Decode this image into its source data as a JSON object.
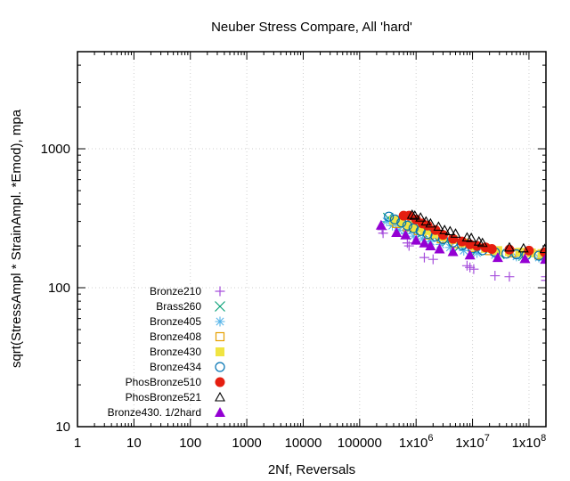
{
  "chart_data": {
    "type": "scatter",
    "title": "Neuber Stress Compare, All 'hard'",
    "xlabel": "2Nf, Reversals",
    "ylabel": "sqrt(StressAmpl * StrainAmpl. *Emod), mpa",
    "xscale": "log",
    "yscale": "log",
    "xlim": [
      1,
      200000000
    ],
    "ylim": [
      10,
      5000
    ],
    "grid": true,
    "legend_position": "bottom-left",
    "x_ticks": [
      {
        "value": 1,
        "label": "1"
      },
      {
        "value": 10,
        "label": "10"
      },
      {
        "value": 100,
        "label": "100"
      },
      {
        "value": 1000,
        "label": "1000"
      },
      {
        "value": 10000,
        "label": "10000"
      },
      {
        "value": 100000,
        "label": "100000"
      },
      {
        "value": 1000000,
        "label": "1x10",
        "sup": "6"
      },
      {
        "value": 10000000,
        "label": "1x10",
        "sup": "7"
      },
      {
        "value": 100000000,
        "label": "1x10",
        "sup": "8"
      }
    ],
    "y_ticks": [
      {
        "value": 10,
        "label": "10"
      },
      {
        "value": 100,
        "label": "100"
      },
      {
        "value": 1000,
        "label": "1000"
      }
    ],
    "series": [
      {
        "name": "Bronze210",
        "marker": "plus",
        "color": "#a64fdc",
        "x": [
          250000,
          260000,
          700000,
          750000,
          1400000,
          2000000,
          8000000,
          9000000,
          10500000,
          25000000,
          45000000,
          200000000,
          200000000
        ],
        "y": [
          262,
          247,
          210,
          200,
          165,
          160,
          144,
          140,
          136,
          122,
          120,
          120,
          113
        ]
      },
      {
        "name": "Brass260",
        "marker": "cross",
        "color": "#009e73",
        "x": [
          320000,
          420000,
          600000,
          900000,
          1300000,
          2000000,
          3500000,
          6000000,
          12000000,
          30000000,
          80000000,
          180000000
        ],
        "y": [
          318,
          300,
          280,
          265,
          250,
          235,
          215,
          200,
          185,
          175,
          170,
          168
        ]
      },
      {
        "name": "Bronze405",
        "marker": "star",
        "color": "#56b4e9",
        "x": [
          300000,
          380000,
          500000,
          650000,
          900000,
          1300000,
          1800000,
          2700000,
          4000000,
          7000000,
          12000000,
          25000000,
          60000000,
          150000000
        ],
        "y": [
          300,
          280,
          260,
          245,
          235,
          225,
          215,
          205,
          195,
          185,
          178,
          172,
          168,
          165
        ]
      },
      {
        "name": "Bronze408",
        "marker": "square-open",
        "color": "#e69f00",
        "x": [
          450000,
          700000,
          1100000,
          1700000,
          2800000,
          5000000,
          10000000,
          20000000,
          50000000,
          150000000
        ],
        "y": [
          290,
          275,
          258,
          240,
          225,
          208,
          195,
          185,
          178,
          172
        ]
      },
      {
        "name": "Bronze430",
        "marker": "square-filled",
        "color": "#f0e442",
        "x": [
          400000,
          550000,
          750000,
          1000000,
          1400000,
          2000000,
          3000000,
          4500000,
          7000000,
          11000000,
          17000000,
          28000000,
          45000000,
          70000000,
          110000000,
          170000000
        ],
        "y": [
          305,
          295,
          282,
          270,
          258,
          245,
          232,
          222,
          210,
          200,
          192,
          185,
          182,
          180,
          178,
          176
        ]
      },
      {
        "name": "Bronze434",
        "marker": "circle-open",
        "color": "#0072b2",
        "x": [
          330000,
          420000,
          550000,
          700000,
          900000,
          1200000,
          1600000,
          2200000,
          3000000,
          4500000,
          6500000,
          10000000,
          15000000,
          25000000,
          40000000,
          60000000,
          90000000,
          150000000
        ],
        "y": [
          325,
          310,
          295,
          280,
          268,
          256,
          244,
          234,
          224,
          212,
          202,
          192,
          186,
          180,
          176,
          174,
          172,
          170
        ]
      },
      {
        "name": "PhosBronze510",
        "marker": "circle-filled",
        "color": "#e51e10",
        "x": [
          600000,
          750000,
          1000000,
          1300000,
          1600000,
          2200000,
          3000000,
          4500000,
          6500000,
          9000000,
          12000000,
          17000000,
          22000000,
          45000000,
          100000000,
          190000000
        ],
        "y": [
          330,
          330,
          310,
          290,
          280,
          260,
          240,
          225,
          215,
          205,
          200,
          195,
          190,
          188,
          185,
          180
        ]
      },
      {
        "name": "PhosBronze521",
        "marker": "triangle-open",
        "color": "#000000",
        "x": [
          850000,
          950000,
          1200000,
          1500000,
          1800000,
          2500000,
          3200000,
          4000000,
          5000000,
          8000000,
          9500000,
          13000000,
          15000000,
          45000000,
          80000000,
          190000000
        ],
        "y": [
          335,
          330,
          320,
          300,
          290,
          275,
          260,
          255,
          245,
          230,
          228,
          215,
          210,
          195,
          192,
          190
        ]
      },
      {
        "name": "Bronze430. 1/2hard",
        "marker": "triangle-filled",
        "color": "#9400d3",
        "x": [
          240000,
          450000,
          650000,
          1000000,
          1400000,
          1800000,
          2600000,
          4500000,
          9000000,
          28000000,
          85000000,
          195000000
        ],
        "y": [
          282,
          250,
          240,
          220,
          210,
          200,
          190,
          182,
          172,
          165,
          162,
          160
        ]
      }
    ]
  }
}
